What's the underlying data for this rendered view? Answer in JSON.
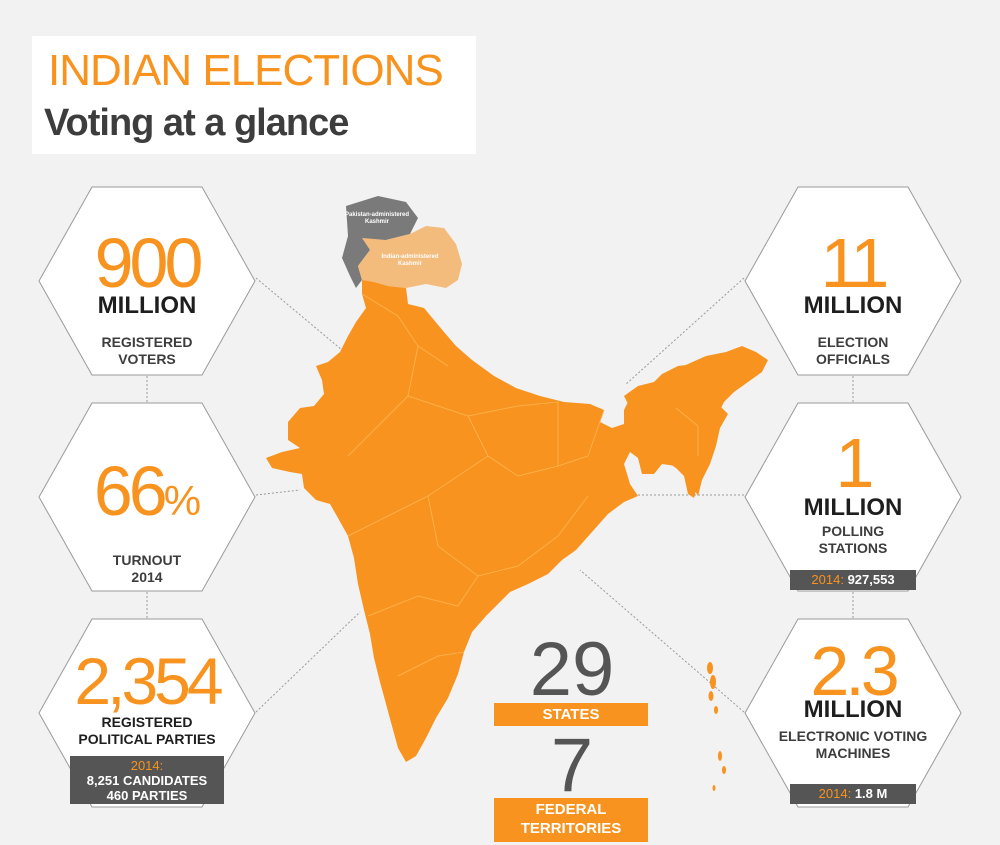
{
  "title": {
    "main": "INDIAN ELECTIONS",
    "sub": "Voting at a glance"
  },
  "colors": {
    "accent": "#f7931e",
    "dark": "#555555",
    "background": "#f2f2f2",
    "kashmir_pakistan": "#7a7a7a",
    "kashmir_india": "#f3bb7c"
  },
  "map": {
    "pakistan_kashmir_label": "Pakistan-administered Kashmir",
    "indian_kashmir_label": "Indian-administered Kashmir"
  },
  "stats": {
    "voters": {
      "number": "900",
      "unit": "MILLION",
      "label_line1": "REGISTERED",
      "label_line2": "VOTERS"
    },
    "turnout": {
      "number": "66",
      "suffix": "%",
      "label_line1": "TURNOUT",
      "label_line2": "2014"
    },
    "parties": {
      "number": "2,354",
      "label_line1": "REGISTERED",
      "label_line2": "POLITICAL PARTIES",
      "note_year": "2014:",
      "note_line1": "8,251 CANDIDATES",
      "note_line2": "460 PARTIES"
    },
    "officials": {
      "number": "11",
      "unit": "MILLION",
      "label_line1": "ELECTION",
      "label_line2": "OFFICIALS"
    },
    "polling": {
      "number": "1",
      "unit": "MILLION",
      "label_line1": "POLLING",
      "label_line2": "STATIONS",
      "note_year": "2014:",
      "note_value": "927,553"
    },
    "evm": {
      "number": "2.3",
      "unit": "MILLION",
      "label_line1": "ELECTRONIC VOTING",
      "label_line2": "MACHINES",
      "note_year": "2014:",
      "note_value": "1.8 M"
    },
    "states": {
      "number": "29",
      "label": "STATES"
    },
    "territories": {
      "number": "7",
      "label_line1": "FEDERAL",
      "label_line2": "TERRITORIES"
    }
  }
}
